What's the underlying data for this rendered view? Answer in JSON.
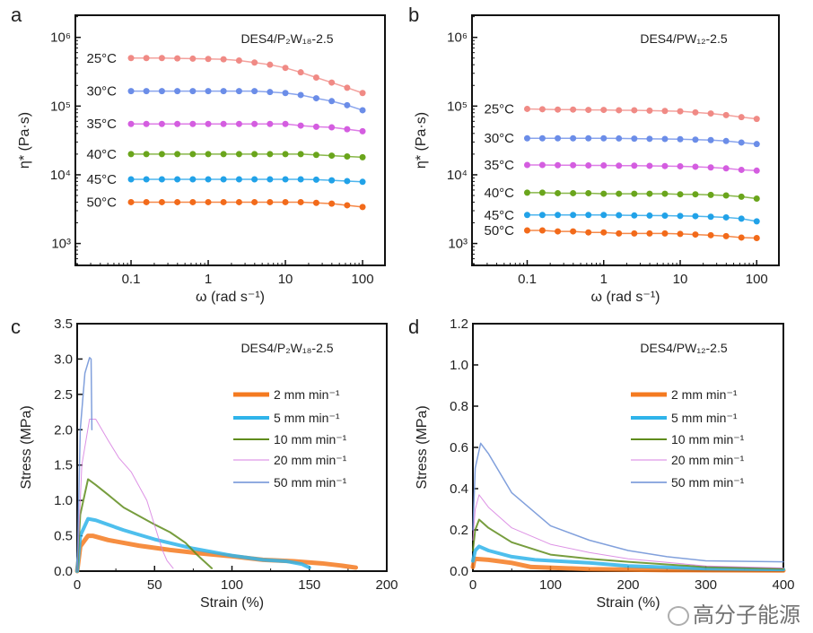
{
  "chart_data": [
    {
      "panel": "a",
      "type": "line",
      "annotation": "DES4/P₂W₁₈-2.5",
      "xlabel": "ω (rad s⁻¹)",
      "ylabel": "η* (Pa·s)",
      "xscale": "log",
      "yscale": "log",
      "xlim": [
        0.019,
        195
      ],
      "ylim": [
        480,
        2100000
      ],
      "xticks": [
        0.1,
        1,
        10,
        100
      ],
      "xtick_labels": [
        "0.1",
        "1",
        "10",
        "100"
      ],
      "yticks": [
        1000,
        10000,
        100000,
        1000000
      ],
      "ytick_labels": [
        "10³",
        "10⁴",
        "10⁵",
        "10⁶"
      ],
      "x": [
        0.1,
        0.158,
        0.251,
        0.398,
        0.631,
        1,
        1.58,
        2.51,
        3.98,
        6.31,
        10,
        15.8,
        25.1,
        39.8,
        63.1,
        100
      ],
      "series": [
        {
          "name": "25°C",
          "color": "#f08a85",
          "values": [
            500000,
            500000,
            500000,
            495000,
            490000,
            485000,
            480000,
            460000,
            430000,
            400000,
            360000,
            310000,
            260000,
            220000,
            185000,
            155000
          ]
        },
        {
          "name": "30°C",
          "color": "#6b8de8",
          "values": [
            165000,
            165000,
            165000,
            165000,
            165000,
            165000,
            165000,
            165000,
            165000,
            160000,
            155000,
            145000,
            130000,
            118000,
            103000,
            87000
          ]
        },
        {
          "name": "35°C",
          "color": "#d45de0",
          "values": [
            55000,
            55000,
            55000,
            55000,
            55000,
            55000,
            55000,
            55000,
            55000,
            55000,
            55000,
            52000,
            50000,
            49000,
            46000,
            43000
          ]
        },
        {
          "name": "40°C",
          "color": "#6aa51c",
          "values": [
            20000,
            20000,
            20000,
            20000,
            20000,
            20000,
            20000,
            20000,
            20000,
            20000,
            20000,
            20000,
            19500,
            19000,
            18500,
            18000
          ]
        },
        {
          "name": "45°C",
          "color": "#21a2e8",
          "values": [
            8600,
            8600,
            8600,
            8600,
            8600,
            8600,
            8600,
            8600,
            8600,
            8600,
            8600,
            8600,
            8500,
            8300,
            8100,
            7900
          ]
        },
        {
          "name": "50°C",
          "color": "#f26a1a",
          "values": [
            4000,
            4000,
            4000,
            4000,
            4000,
            4000,
            4000,
            4000,
            4000,
            4000,
            4000,
            4000,
            3900,
            3800,
            3600,
            3400
          ]
        }
      ]
    },
    {
      "panel": "b",
      "type": "line",
      "annotation": "DES4/PW₁₂-2.5",
      "xlabel": "ω (rad s⁻¹)",
      "ylabel": "η* (Pa·s)",
      "xscale": "log",
      "yscale": "log",
      "xlim": [
        0.019,
        195
      ],
      "ylim": [
        480,
        2100000
      ],
      "xticks": [
        0.1,
        1,
        10,
        100
      ],
      "xtick_labels": [
        "0.1",
        "1",
        "10",
        "100"
      ],
      "yticks": [
        1000,
        10000,
        100000,
        1000000
      ],
      "ytick_labels": [
        "10³",
        "10⁴",
        "10⁵",
        "10⁶"
      ],
      "x": [
        0.1,
        0.158,
        0.251,
        0.398,
        0.631,
        1,
        1.58,
        2.51,
        3.98,
        6.31,
        10,
        15.8,
        25.1,
        39.8,
        63.1,
        100
      ],
      "series": [
        {
          "name": "25°C",
          "color": "#f08a85",
          "values": [
            91000,
            90000,
            89000,
            89000,
            88000,
            88000,
            87000,
            87000,
            86000,
            85000,
            84000,
            81000,
            78000,
            74000,
            69000,
            65000
          ]
        },
        {
          "name": "30°C",
          "color": "#6b8de8",
          "values": [
            34000,
            34000,
            34000,
            34000,
            34000,
            34000,
            33800,
            33600,
            33400,
            33200,
            33000,
            32500,
            32000,
            31000,
            29500,
            28000
          ]
        },
        {
          "name": "35°C",
          "color": "#d45de0",
          "values": [
            13900,
            13900,
            13800,
            13800,
            13700,
            13700,
            13600,
            13600,
            13500,
            13400,
            13300,
            13100,
            12800,
            12400,
            11800,
            11500
          ]
        },
        {
          "name": "40°C",
          "color": "#6aa51c",
          "values": [
            5500,
            5500,
            5400,
            5400,
            5400,
            5300,
            5300,
            5300,
            5300,
            5300,
            5200,
            5200,
            5100,
            5000,
            4800,
            4500
          ]
        },
        {
          "name": "45°C",
          "color": "#21a2e8",
          "values": [
            2600,
            2600,
            2600,
            2600,
            2600,
            2600,
            2580,
            2560,
            2550,
            2540,
            2520,
            2500,
            2450,
            2400,
            2300,
            2100
          ]
        },
        {
          "name": "50°C",
          "color": "#f26a1a",
          "values": [
            1550,
            1550,
            1500,
            1500,
            1450,
            1450,
            1400,
            1400,
            1400,
            1400,
            1380,
            1350,
            1320,
            1280,
            1220,
            1200
          ]
        }
      ]
    },
    {
      "panel": "c",
      "type": "line",
      "annotation": "DES4/P₂W₁₈-2.5",
      "xlabel": "Strain (%)",
      "ylabel": "Stress (MPa)",
      "xlim": [
        0,
        200
      ],
      "ylim": [
        0,
        3.5
      ],
      "xticks": [
        0,
        50,
        100,
        150,
        200
      ],
      "yticks": [
        0.0,
        0.5,
        1.0,
        1.5,
        2.0,
        2.5,
        3.0,
        3.5
      ],
      "ytick_labels": [
        "0.0",
        "0.5",
        "1.0",
        "1.5",
        "2.0",
        "2.5",
        "3.0",
        "3.5"
      ],
      "legend_position": "right",
      "series": [
        {
          "name": "2 mm min⁻¹",
          "color": "#f47a20",
          "points": [
            [
              0,
              0
            ],
            [
              2,
              0.35
            ],
            [
              7,
              0.5
            ],
            [
              10,
              0.5
            ],
            [
              20,
              0.44
            ],
            [
              40,
              0.36
            ],
            [
              60,
              0.3
            ],
            [
              80,
              0.25
            ],
            [
              100,
              0.21
            ],
            [
              120,
              0.16
            ],
            [
              140,
              0.14
            ],
            [
              158,
              0.11
            ],
            [
              170,
              0.08
            ],
            [
              180,
              0.05
            ]
          ]
        },
        {
          "name": "5 mm min⁻¹",
          "color": "#2fb4ea",
          "points": [
            [
              0,
              0
            ],
            [
              2,
              0.5
            ],
            [
              7,
              0.74
            ],
            [
              12,
              0.72
            ],
            [
              30,
              0.58
            ],
            [
              50,
              0.45
            ],
            [
              75,
              0.32
            ],
            [
              100,
              0.22
            ],
            [
              120,
              0.16
            ],
            [
              135,
              0.14
            ],
            [
              145,
              0.1
            ],
            [
              150,
              0.05
            ]
          ]
        },
        {
          "name": "10 mm min⁻¹",
          "color": "#5f8c1c",
          "points": [
            [
              0,
              0
            ],
            [
              2,
              0.8
            ],
            [
              7,
              1.3
            ],
            [
              12,
              1.22
            ],
            [
              20,
              1.08
            ],
            [
              30,
              0.9
            ],
            [
              50,
              0.66
            ],
            [
              60,
              0.55
            ],
            [
              70,
              0.4
            ],
            [
              78,
              0.22
            ],
            [
              87,
              0.04
            ]
          ]
        },
        {
          "name": "20 mm min⁻¹",
          "color": "#d77fe0",
          "points": [
            [
              0,
              0
            ],
            [
              3,
              1.5
            ],
            [
              8,
              2.15
            ],
            [
              12,
              2.15
            ],
            [
              20,
              1.85
            ],
            [
              27,
              1.6
            ],
            [
              35,
              1.4
            ],
            [
              45,
              1.0
            ],
            [
              50,
              0.65
            ],
            [
              55,
              0.3
            ],
            [
              58,
              0.15
            ],
            [
              62,
              0.04
            ]
          ]
        },
        {
          "name": "50 mm min⁻¹",
          "color": "#6b8fd6",
          "points": [
            [
              0,
              0
            ],
            [
              2,
              2.0
            ],
            [
              5,
              2.8
            ],
            [
              8,
              3.02
            ],
            [
              9,
              3.0
            ],
            [
              9.5,
              2.0
            ]
          ]
        }
      ]
    },
    {
      "panel": "d",
      "type": "line",
      "annotation": "DES4/PW₁₂-2.5",
      "xlabel": "Strain (%)",
      "ylabel": "Stress (MPa)",
      "xlim": [
        0,
        400
      ],
      "ylim": [
        0,
        1.2
      ],
      "xticks": [
        0,
        100,
        200,
        300,
        400
      ],
      "yticks": [
        0.0,
        0.2,
        0.4,
        0.6,
        0.8,
        1.0,
        1.2
      ],
      "ytick_labels": [
        "0.0",
        "0.2",
        "0.4",
        "0.6",
        "0.8",
        "1.0",
        "1.2"
      ],
      "legend_position": "right",
      "series": [
        {
          "name": "2 mm min⁻¹",
          "color": "#f47a20",
          "points": [
            [
              0,
              0.02
            ],
            [
              2,
              0.06
            ],
            [
              20,
              0.055
            ],
            [
              50,
              0.04
            ],
            [
              75,
              0.02
            ],
            [
              150,
              0.01
            ],
            [
              250,
              0.005
            ],
            [
              400,
              0.003
            ]
          ]
        },
        {
          "name": "5 mm min⁻¹",
          "color": "#2fb4ea",
          "points": [
            [
              0,
              0.05
            ],
            [
              3,
              0.1
            ],
            [
              8,
              0.12
            ],
            [
              20,
              0.1
            ],
            [
              50,
              0.07
            ],
            [
              80,
              0.055
            ],
            [
              150,
              0.04
            ],
            [
              200,
              0.025
            ],
            [
              300,
              0.012
            ],
            [
              400,
              0.008
            ]
          ]
        },
        {
          "name": "10 mm min⁻¹",
          "color": "#5f8c1c",
          "points": [
            [
              0,
              0.1
            ],
            [
              3,
              0.2
            ],
            [
              8,
              0.25
            ],
            [
              20,
              0.21
            ],
            [
              50,
              0.14
            ],
            [
              100,
              0.08
            ],
            [
              150,
              0.06
            ],
            [
              200,
              0.045
            ],
            [
              300,
              0.02
            ],
            [
              400,
              0.012
            ]
          ]
        },
        {
          "name": "20 mm min⁻¹",
          "color": "#d77fe0",
          "points": [
            [
              0,
              0.15
            ],
            [
              3,
              0.3
            ],
            [
              8,
              0.37
            ],
            [
              20,
              0.31
            ],
            [
              50,
              0.21
            ],
            [
              100,
              0.13
            ],
            [
              150,
              0.09
            ],
            [
              200,
              0.06
            ],
            [
              300,
              0.025
            ],
            [
              400,
              0.015
            ]
          ]
        },
        {
          "name": "50 mm min⁻¹",
          "color": "#6b8fd6",
          "points": [
            [
              0,
              0.2
            ],
            [
              3,
              0.5
            ],
            [
              10,
              0.62
            ],
            [
              20,
              0.57
            ],
            [
              50,
              0.38
            ],
            [
              100,
              0.22
            ],
            [
              150,
              0.15
            ],
            [
              200,
              0.1
            ],
            [
              250,
              0.07
            ],
            [
              300,
              0.05
            ],
            [
              400,
              0.045
            ]
          ]
        }
      ]
    }
  ],
  "watermark": "高分子能源"
}
